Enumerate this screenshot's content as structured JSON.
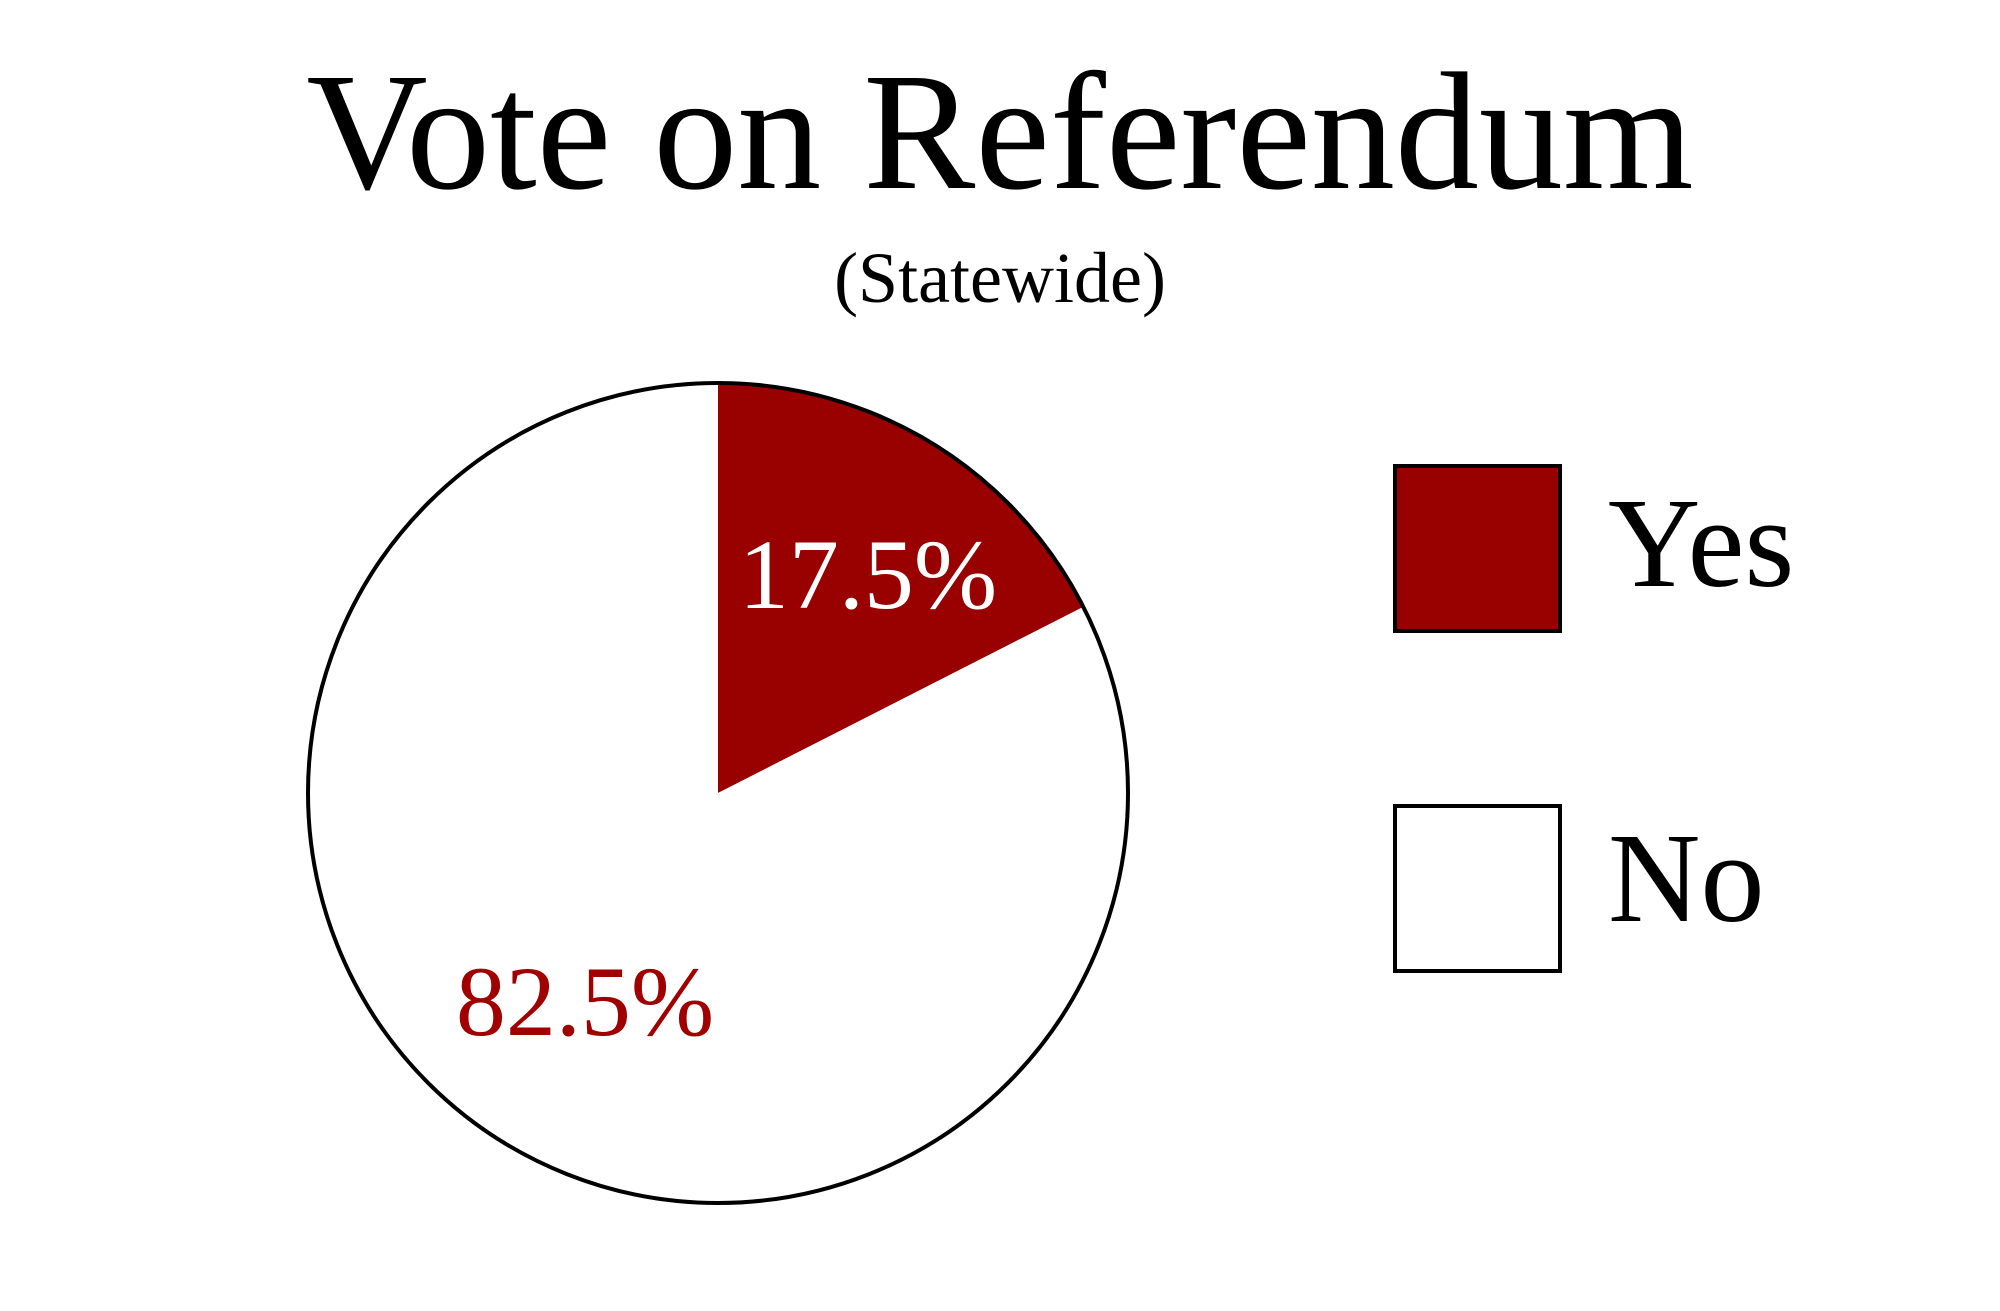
{
  "chart_data": {
    "type": "pie",
    "title": "Vote on Referendum",
    "subtitle": "(Statewide)",
    "legend_position": "right",
    "slices": [
      {
        "name": "Yes",
        "value": 17.5,
        "label": "17.5%",
        "color": "#990000",
        "label_color": "#ffffff"
      },
      {
        "name": "No",
        "value": 82.5,
        "label": "82.5%",
        "color": "#ffffff",
        "label_color": "#a00000"
      }
    ],
    "outline_color": "#000000"
  }
}
